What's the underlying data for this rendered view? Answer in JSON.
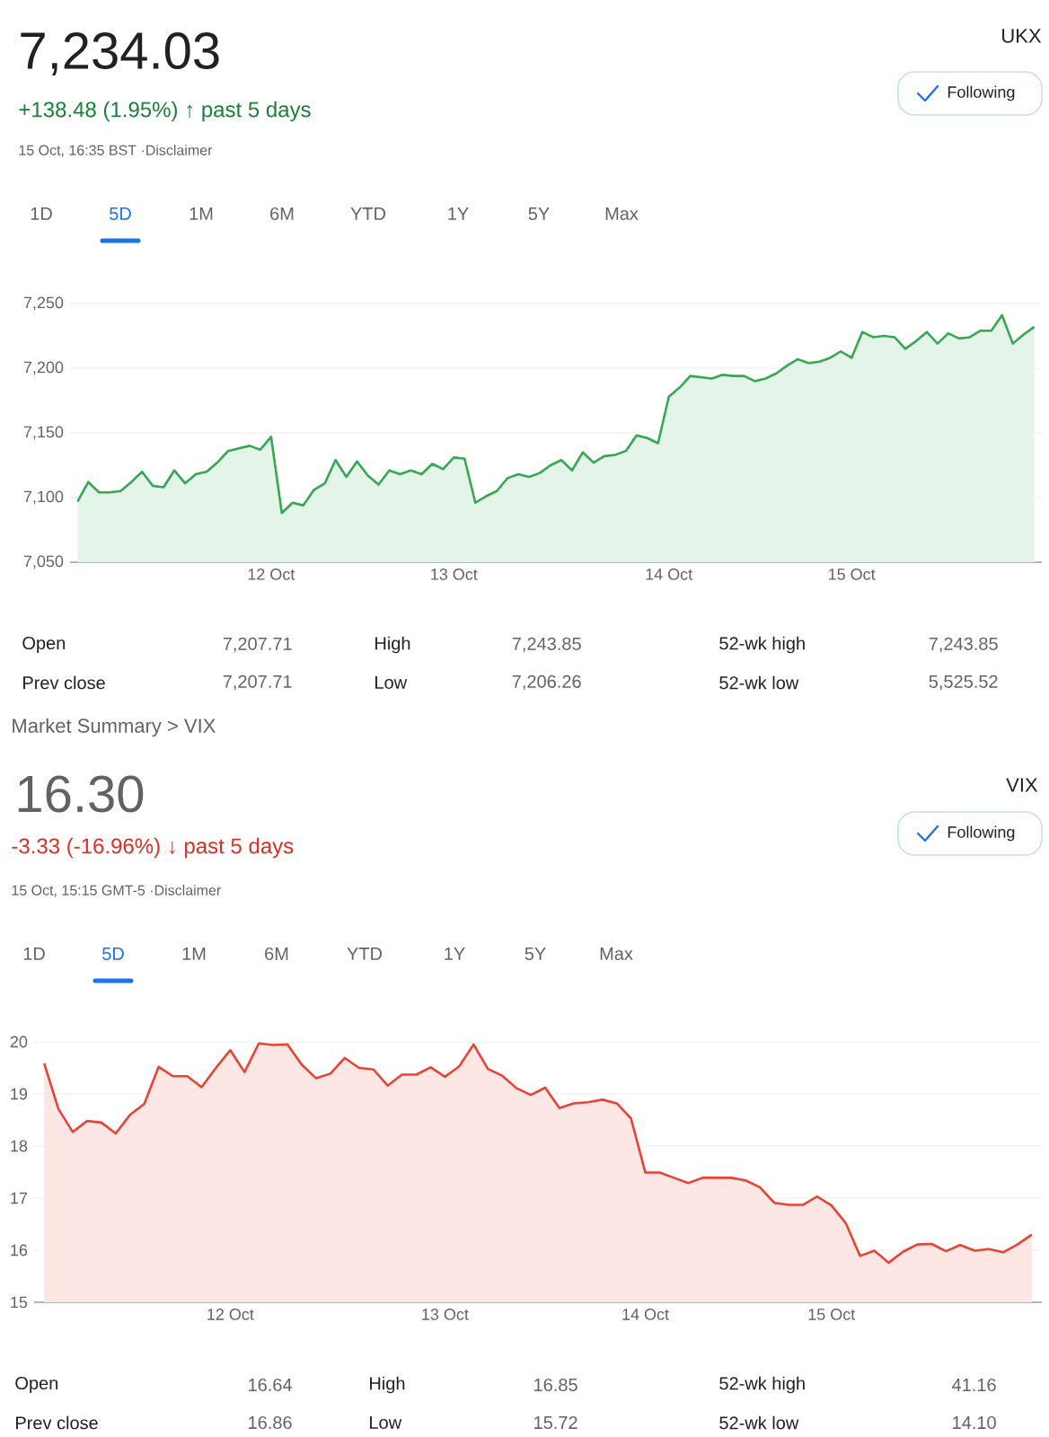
{
  "chart_data": [
    {
      "type": "area",
      "title": "7,234.03",
      "subtitle": "+138.48 (1.95%) ↑ past 5 days",
      "annotations": [
        "15 Oct, 16:35 BST ·Disclaimer",
        "UKX",
        "Following",
        "1D",
        "5D",
        "1M",
        "6M",
        "YTD",
        "1Y",
        "5Y",
        "Max",
        "Open",
        "7,207.71",
        "High",
        "7,243.85",
        "52-wk high",
        "7,243.85",
        "Prev close",
        "7,207.71",
        "Low",
        "7,206.26",
        "52-wk low",
        "5,525.52"
      ],
      "categories": [
        null,
        null,
        null,
        null,
        null,
        null,
        null,
        null,
        null,
        null,
        null,
        null,
        null,
        null,
        null,
        null,
        null,
        null,
        "12 Oct",
        null,
        null,
        null,
        null,
        null,
        null,
        null,
        null,
        null,
        null,
        null,
        null,
        null,
        null,
        null,
        null,
        "13 Oct",
        null,
        null,
        null,
        null,
        null,
        null,
        null,
        null,
        null,
        null,
        null,
        null,
        null,
        null,
        null,
        null,
        null,
        null,
        null,
        "14 Oct",
        null,
        null,
        null,
        null,
        null,
        null,
        null,
        null,
        null,
        null,
        null,
        null,
        null,
        null,
        null,
        null,
        "15 Oct",
        null,
        null,
        null,
        null,
        null,
        null,
        null,
        null,
        null,
        null,
        null,
        null,
        null,
        null,
        null,
        null,
        null
      ],
      "series": [
        {
          "color": "#34a853",
          "values": [
            7097,
            7112,
            7104,
            7104,
            7105,
            7112,
            7120,
            7109,
            7108,
            7121,
            7111,
            7118,
            7120,
            7127,
            7136,
            7138,
            7140,
            7137,
            7147,
            7088,
            7096,
            7094,
            7106,
            7111,
            7129,
            7116,
            7128,
            7117,
            7110,
            7121,
            7118,
            7121,
            7118,
            7126,
            7122,
            7131,
            7130,
            7096,
            7101,
            7105,
            7115,
            7118,
            7116,
            7119,
            7125,
            7129,
            7121,
            7135,
            7127,
            7132,
            7133,
            7136,
            7148,
            7146,
            7142,
            7178,
            7185,
            7194,
            7193,
            7192,
            7195,
            7194,
            7194,
            7190,
            7192,
            7196,
            7202,
            7207,
            7204,
            7205,
            7208,
            7213,
            7208,
            7228,
            7224,
            7225,
            7224,
            7215,
            7221,
            7228,
            7219,
            7227,
            7223,
            7224,
            7229,
            7229,
            7241,
            7219,
            7226,
            7232
          ]
        }
      ],
      "ylim": [
        7050,
        7250
      ],
      "yticks": [
        {
          "value": 7050,
          "label": "7,050"
        },
        {
          "value": 7100,
          "label": "7,100"
        },
        {
          "value": 7150,
          "label": "7,150"
        },
        {
          "value": 7200,
          "label": "7,200"
        },
        {
          "value": 7250,
          "label": "7,250"
        }
      ],
      "grid": "y"
    },
    {
      "type": "area",
      "title": "16.30",
      "subtitle": "-3.33 (-16.96%) ↓ past 5 days",
      "annotations": [
        "Market Summary > VIX",
        "15 Oct, 15:15 GMT-5 ·Disclaimer",
        "VIX",
        "Following",
        "1D",
        "5D",
        "1M",
        "6M",
        "YTD",
        "1Y",
        "5Y",
        "Max",
        "Open",
        "16.64",
        "High",
        "16.85",
        "52-wk high",
        "41.16",
        "Prev close",
        "16.86",
        "Low",
        "15.72",
        "52-wk low",
        "14.10"
      ],
      "categories": [
        null,
        null,
        null,
        null,
        null,
        null,
        null,
        null,
        null,
        null,
        null,
        null,
        null,
        "12 Oct",
        null,
        null,
        null,
        null,
        null,
        null,
        null,
        null,
        null,
        null,
        null,
        null,
        null,
        null,
        "13 Oct",
        null,
        null,
        null,
        null,
        null,
        null,
        null,
        null,
        null,
        null,
        null,
        null,
        null,
        "14 Oct",
        null,
        null,
        null,
        null,
        null,
        null,
        null,
        null,
        null,
        null,
        null,
        null,
        "15 Oct",
        null,
        null,
        null,
        null,
        null,
        null,
        null,
        null,
        null,
        null,
        null,
        null,
        null,
        null
      ],
      "series": [
        {
          "color": "#ea4335",
          "values": [
            19.59,
            18.71,
            18.27,
            18.48,
            18.45,
            18.24,
            18.6,
            18.81,
            19.52,
            19.34,
            19.34,
            19.13,
            19.5,
            19.84,
            19.42,
            19.97,
            19.94,
            19.95,
            19.56,
            19.3,
            19.39,
            19.69,
            19.5,
            19.47,
            19.16,
            19.37,
            19.37,
            19.51,
            19.33,
            19.53,
            19.95,
            19.48,
            19.35,
            19.11,
            18.98,
            19.12,
            18.73,
            18.82,
            18.84,
            18.89,
            18.82,
            18.53,
            17.49,
            17.49,
            17.39,
            17.29,
            17.39,
            17.39,
            17.39,
            17.34,
            17.21,
            16.91,
            16.87,
            16.87,
            17.03,
            16.86,
            16.52,
            15.89,
            15.99,
            15.76,
            15.97,
            16.11,
            16.12,
            15.98,
            16.1,
            15.99,
            16.02,
            15.96,
            16.11,
            16.3
          ]
        }
      ],
      "ylim": [
        15,
        20
      ],
      "yticks": [
        15,
        16,
        17,
        18,
        19,
        20
      ],
      "grid": "y"
    }
  ]
}
